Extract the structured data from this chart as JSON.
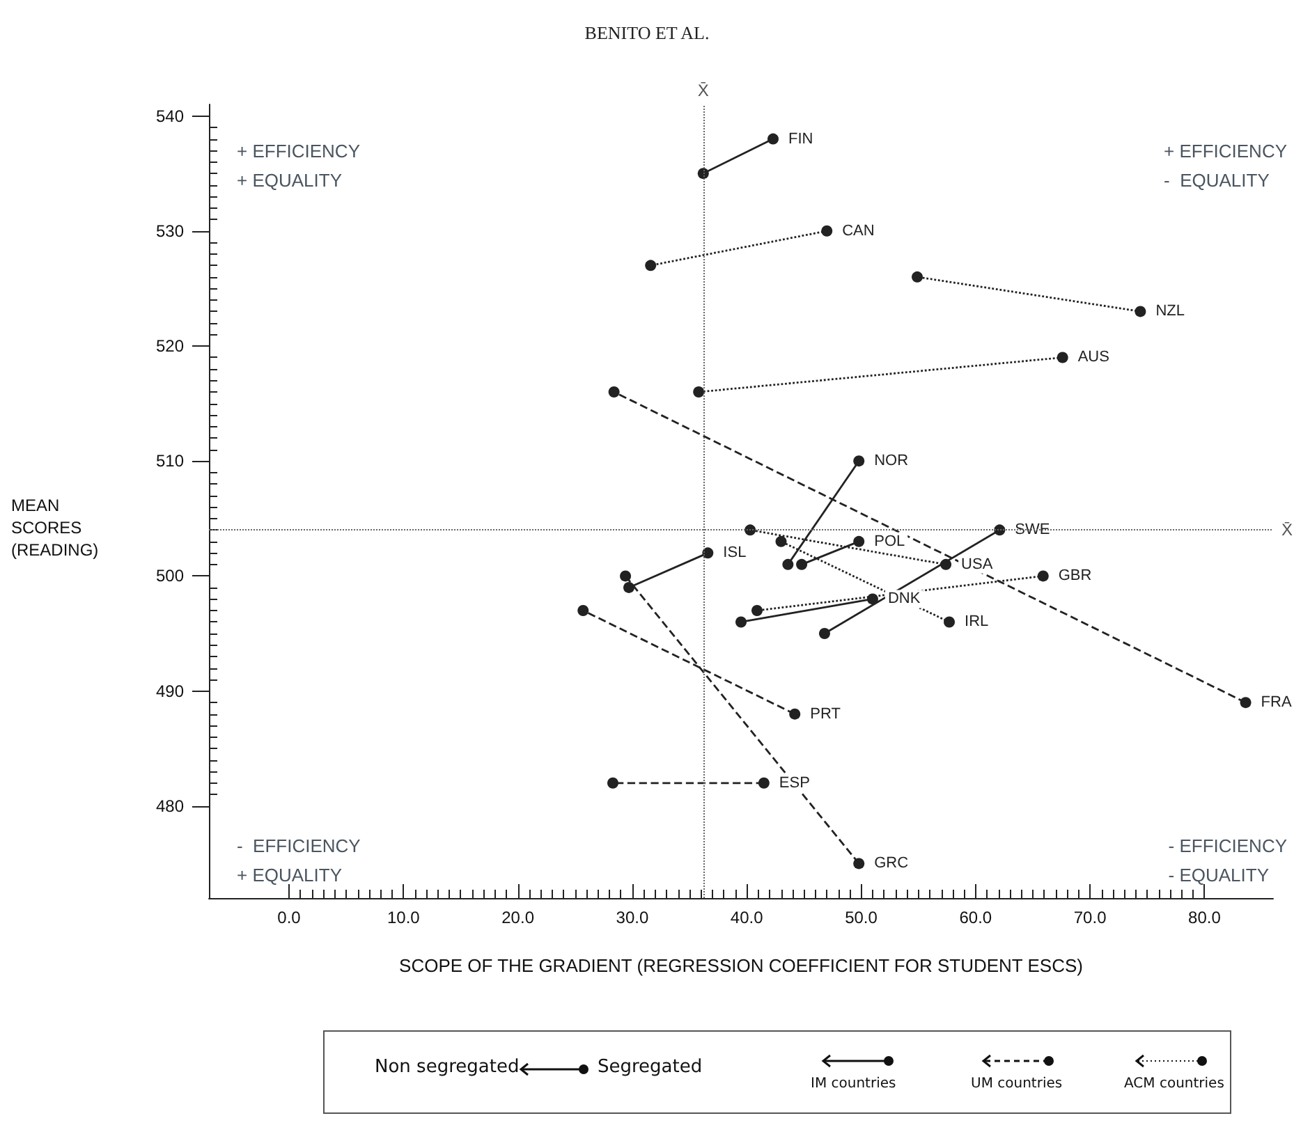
{
  "chart_data": {
    "type": "line",
    "title": "BENITO ET AL.",
    "xlabel": "SCOPE OF THE GRADIENT (REGRESSION COEFFICIENT FOR STUDENT ESCS)",
    "ylabel": "MEAN SCORES (READING)",
    "annotations": [
      "+ EFFICIENCY\n+ EQUALITY",
      "+ EFFICIENCY\n-  EQUALITY",
      "-  EFFICIENCY\n+ EQUALITY",
      "- EFFICIENCY\n- EQUALITY",
      "Non segregated",
      "Segregated",
      "IM countries",
      "UM countries",
      "ACM countries"
    ],
    "xlim": [
      -7,
      86
    ],
    "ylim": [
      472,
      541
    ],
    "xticks": [
      {
        "value": 0,
        "label": "0.0"
      },
      {
        "value": 1,
        "label": null
      },
      {
        "value": 2,
        "label": null
      },
      {
        "value": 3,
        "label": null
      },
      {
        "value": 4,
        "label": null
      },
      {
        "value": 5,
        "label": null
      },
      {
        "value": 6,
        "label": null
      },
      {
        "value": 7,
        "label": null
      },
      {
        "value": 8,
        "label": null
      },
      {
        "value": 9,
        "label": null
      },
      {
        "value": 10,
        "label": "10.0"
      },
      {
        "value": 11,
        "label": null
      },
      {
        "value": 12,
        "label": null
      },
      {
        "value": 13,
        "label": null
      },
      {
        "value": 14,
        "label": null
      },
      {
        "value": 15,
        "label": null
      },
      {
        "value": 16,
        "label": null
      },
      {
        "value": 17,
        "label": null
      },
      {
        "value": 18,
        "label": null
      },
      {
        "value": 19,
        "label": null
      },
      {
        "value": 20,
        "label": "20.0"
      },
      {
        "value": 21,
        "label": null
      },
      {
        "value": 22,
        "label": null
      },
      {
        "value": 23,
        "label": null
      },
      {
        "value": 24,
        "label": null
      },
      {
        "value": 25,
        "label": null
      },
      {
        "value": 26,
        "label": null
      },
      {
        "value": 27,
        "label": null
      },
      {
        "value": 28,
        "label": null
      },
      {
        "value": 29,
        "label": null
      },
      {
        "value": 30,
        "label": "30.0"
      },
      {
        "value": 31,
        "label": null
      },
      {
        "value": 32,
        "label": null
      },
      {
        "value": 33,
        "label": null
      },
      {
        "value": 34,
        "label": null
      },
      {
        "value": 35,
        "label": null
      },
      {
        "value": 36,
        "label": null
      },
      {
        "value": 37,
        "label": null
      },
      {
        "value": 38,
        "label": null
      },
      {
        "value": 39,
        "label": null
      },
      {
        "value": 40,
        "label": "40.0"
      },
      {
        "value": 41,
        "label": null
      },
      {
        "value": 42,
        "label": null
      },
      {
        "value": 43,
        "label": null
      },
      {
        "value": 44,
        "label": null
      },
      {
        "value": 45,
        "label": null
      },
      {
        "value": 46,
        "label": null
      },
      {
        "value": 47,
        "label": null
      },
      {
        "value": 48,
        "label": null
      },
      {
        "value": 49,
        "label": null
      },
      {
        "value": 50,
        "label": "50.0"
      },
      {
        "value": 51,
        "label": null
      },
      {
        "value": 52,
        "label": null
      },
      {
        "value": 53,
        "label": null
      },
      {
        "value": 54,
        "label": null
      },
      {
        "value": 55,
        "label": null
      },
      {
        "value": 56,
        "label": null
      },
      {
        "value": 57,
        "label": null
      },
      {
        "value": 58,
        "label": null
      },
      {
        "value": 59,
        "label": null
      },
      {
        "value": 60,
        "label": "60.0"
      },
      {
        "value": 61,
        "label": null
      },
      {
        "value": 62,
        "label": null
      },
      {
        "value": 63,
        "label": null
      },
      {
        "value": 64,
        "label": null
      },
      {
        "value": 65,
        "label": null
      },
      {
        "value": 66,
        "label": null
      },
      {
        "value": 67,
        "label": null
      },
      {
        "value": 68,
        "label": null
      },
      {
        "value": 69,
        "label": null
      },
      {
        "value": 70,
        "label": "70.0"
      },
      {
        "value": 71,
        "label": null
      },
      {
        "value": 72,
        "label": null
      },
      {
        "value": 73,
        "label": null
      },
      {
        "value": 74,
        "label": null
      },
      {
        "value": 75,
        "label": null
      },
      {
        "value": 76,
        "label": null
      },
      {
        "value": 77,
        "label": null
      },
      {
        "value": 78,
        "label": null
      },
      {
        "value": 79,
        "label": null
      },
      {
        "value": 80,
        "label": "80.0"
      }
    ],
    "yticks": [
      480,
      {
        "value": 481,
        "label": null
      },
      {
        "value": 482,
        "label": null
      },
      {
        "value": 483,
        "label": null
      },
      {
        "value": 484,
        "label": null
      },
      {
        "value": 485,
        "label": null
      },
      {
        "value": 486,
        "label": null
      },
      {
        "value": 487,
        "label": null
      },
      {
        "value": 488,
        "label": null
      },
      {
        "value": 489,
        "label": null
      },
      490,
      {
        "value": 491,
        "label": null
      },
      {
        "value": 492,
        "label": null
      },
      {
        "value": 493,
        "label": null
      },
      {
        "value": 494,
        "label": null
      },
      {
        "value": 495,
        "label": null
      },
      {
        "value": 496,
        "label": null
      },
      {
        "value": 497,
        "label": null
      },
      {
        "value": 498,
        "label": null
      },
      {
        "value": 499,
        "label": null
      },
      500,
      {
        "value": 501,
        "label": null
      },
      {
        "value": 502,
        "label": null
      },
      {
        "value": 503,
        "label": null
      },
      {
        "value": 504,
        "label": null
      },
      {
        "value": 505,
        "label": null
      },
      {
        "value": 506,
        "label": null
      },
      {
        "value": 507,
        "label": null
      },
      {
        "value": 508,
        "label": null
      },
      {
        "value": 509,
        "label": null
      },
      510,
      {
        "value": 511,
        "label": null
      },
      {
        "value": 512,
        "label": null
      },
      {
        "value": 513,
        "label": null
      },
      {
        "value": 514,
        "label": null
      },
      {
        "value": 515,
        "label": null
      },
      {
        "value": 516,
        "label": null
      },
      {
        "value": 517,
        "label": null
      },
      {
        "value": 518,
        "label": null
      },
      {
        "value": 519,
        "label": null
      },
      520,
      {
        "value": 521,
        "label": null
      },
      {
        "value": 522,
        "label": null
      },
      {
        "value": 523,
        "label": null
      },
      {
        "value": 524,
        "label": null
      },
      {
        "value": 525,
        "label": null
      },
      {
        "value": 526,
        "label": null
      },
      {
        "value": 527,
        "label": null
      },
      {
        "value": 528,
        "label": null
      },
      {
        "value": 529,
        "label": null
      },
      530,
      {
        "value": 531,
        "label": null
      },
      {
        "value": 532,
        "label": null
      },
      {
        "value": 533,
        "label": null
      },
      {
        "value": 534,
        "label": null
      },
      {
        "value": 535,
        "label": null
      },
      {
        "value": 536,
        "label": null
      },
      {
        "value": 537,
        "label": null
      },
      {
        "value": 538,
        "label": null
      },
      {
        "value": 539,
        "label": null
      },
      540
    ],
    "grid": false,
    "legend": false,
    "marker": "circle",
    "ref_lines": [
      {
        "axis": "x",
        "value": 36.2,
        "label": "X̄",
        "line_style": "dotted",
        "color": "#666666"
      },
      {
        "axis": "y",
        "value": 504,
        "label": "X̄",
        "line_style": "dotted",
        "color": "#666666"
      }
    ],
    "series": [
      {
        "name": "FIN",
        "color": "#222222",
        "line_style": "solid",
        "x": [
          42.3,
          36.2
        ],
        "values": [
          538,
          535
        ]
      },
      {
        "name": "CAN",
        "color": "#222222",
        "line_style": "dotted",
        "x": [
          47.0,
          31.6
        ],
        "values": [
          530,
          527
        ]
      },
      {
        "name": "NZL",
        "color": "#222222",
        "line_style": "dotted",
        "x": [
          74.4,
          54.9
        ],
        "values": [
          523,
          526
        ]
      },
      {
        "name": "AUS",
        "color": "#222222",
        "line_style": "dotted",
        "x": [
          67.6,
          35.8
        ],
        "values": [
          519,
          516
        ]
      },
      {
        "name": "FRA",
        "color": "#222222",
        "line_style": "dashed",
        "x": [
          83.6,
          28.4
        ],
        "values": [
          489,
          516
        ]
      },
      {
        "name": "NOR",
        "color": "#222222",
        "line_style": "solid",
        "x": [
          49.8,
          43.6
        ],
        "values": [
          510,
          501
        ]
      },
      {
        "name": "POL",
        "color": "#222222",
        "line_style": "solid",
        "x": [
          49.8,
          44.8
        ],
        "values": [
          503,
          501
        ]
      },
      {
        "name": "SWE",
        "color": "#222222",
        "line_style": "solid",
        "x": [
          62.1,
          46.8
        ],
        "values": [
          504,
          495
        ]
      },
      {
        "name": "DNK",
        "color": "#222222",
        "line_style": "solid",
        "x": [
          51.0,
          39.5
        ],
        "values": [
          498,
          496
        ]
      },
      {
        "name": "ISL",
        "color": "#222222",
        "line_style": "solid",
        "x": [
          36.6,
          29.7
        ],
        "values": [
          502,
          499
        ]
      },
      {
        "name": "GRC",
        "color": "#222222",
        "line_style": "dashed",
        "x": [
          49.8,
          29.4
        ],
        "values": [
          475,
          500
        ]
      },
      {
        "name": "PRT",
        "color": "#222222",
        "line_style": "dashed",
        "x": [
          44.2,
          25.7
        ],
        "values": [
          488,
          497
        ]
      },
      {
        "name": "ESP",
        "color": "#222222",
        "line_style": "dashed",
        "x": [
          41.5,
          28.3
        ],
        "values": [
          482,
          482
        ]
      },
      {
        "name": "USA",
        "color": "#222222",
        "line_style": "dotted",
        "x": [
          57.4,
          40.3
        ],
        "values": [
          501,
          504
        ]
      },
      {
        "name": "GBR",
        "color": "#222222",
        "line_style": "dotted",
        "x": [
          65.9,
          40.9
        ],
        "values": [
          500,
          497
        ]
      },
      {
        "name": "IRL",
        "color": "#222222",
        "line_style": "dotted",
        "x": [
          57.7,
          43.0
        ],
        "values": [
          496,
          503
        ]
      }
    ]
  }
}
